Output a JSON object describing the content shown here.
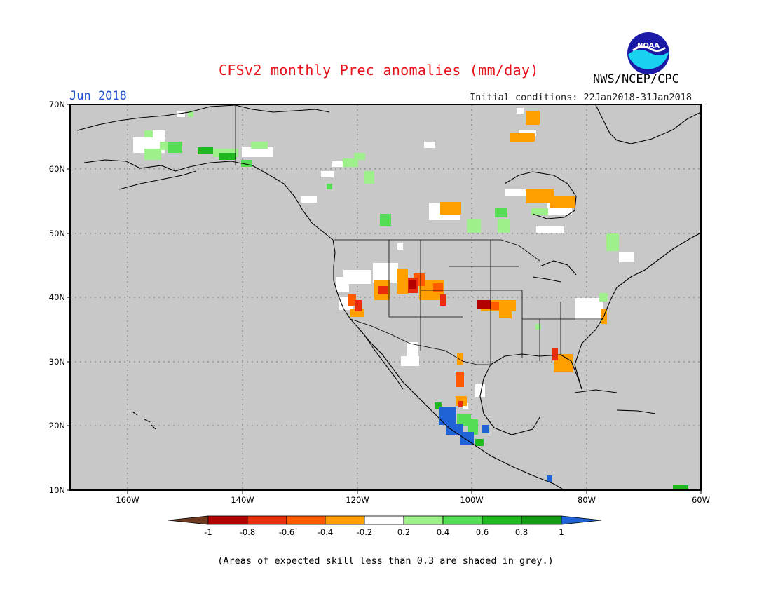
{
  "title": "CFSv2 monthly Prec anomalies (mm/day)",
  "period": "Jun 2018",
  "initial_conditions": "Initial conditions: 22Jan2018-31Jan2018",
  "agency": "NWS/NCEP/CPC",
  "logo_text": "NOAA",
  "footnote": "(Areas of expected skill less than 0.3 are shaded in grey.)",
  "map": {
    "lat_labels": [
      "70N",
      "60N",
      "50N",
      "40N",
      "30N",
      "20N",
      "10N"
    ],
    "lon_labels": [
      "160W",
      "140W",
      "120W",
      "100W",
      "80W",
      "60W"
    ],
    "background_color": "#c8c8c8"
  },
  "colorbar": {
    "ticks": [
      "-1",
      "-0.8",
      "-0.6",
      "-0.4",
      "-0.2",
      "0.2",
      "0.4",
      "0.6",
      "0.8",
      "1"
    ],
    "colors": [
      "#6e3b21",
      "#b30000",
      "#e82c0c",
      "#ff5a00",
      "#ff9f00",
      "#ffffff",
      "#9ef08a",
      "#55dd55",
      "#20b820",
      "#159a15",
      "#1f63d6"
    ]
  }
}
